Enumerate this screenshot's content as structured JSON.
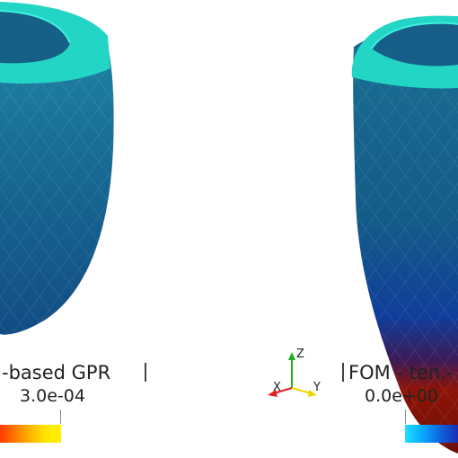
{
  "left_panel": {
    "title": "-based GPR",
    "value": "3.0e-04",
    "colormap": [
      "#ff3a00",
      "#ff7a00",
      "#ffb700",
      "#ffe500",
      "#fff200"
    ]
  },
  "right_panel": {
    "title": "FOM - ten.-",
    "value": "0.0e+00",
    "colormap": [
      "#1ee0ff",
      "#0aa8ff",
      "#0f63e0",
      "#1a2fb0"
    ]
  },
  "orientation_axes": {
    "x_label": "X",
    "y_label": "Y",
    "z_label": "Z",
    "x_color": "#e02020",
    "y_color": "#e8d800",
    "z_color": "#20b020"
  },
  "surface_colors": {
    "rim": "#20d8c8",
    "body_top": "#1b6f8f",
    "body_mid": "#155a87",
    "right_base": "#8a1408"
  }
}
